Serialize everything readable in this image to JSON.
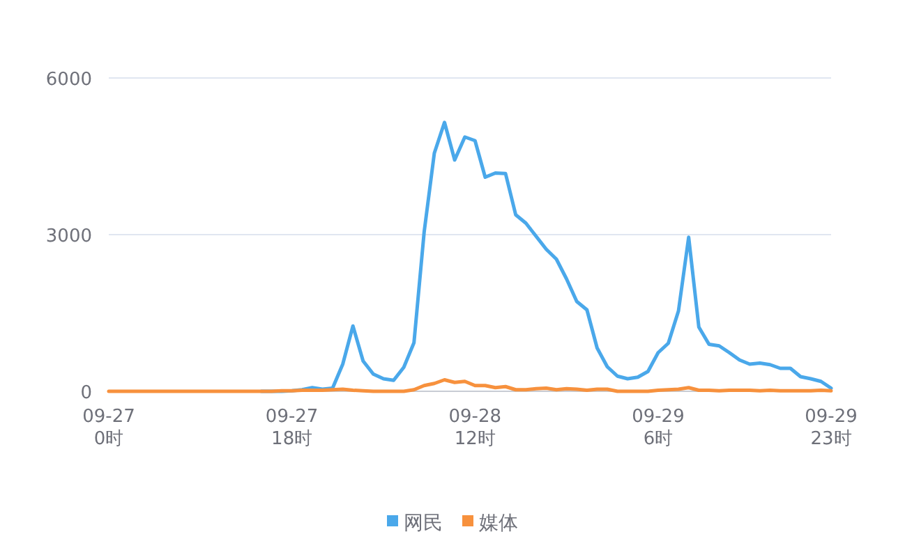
{
  "chart_data": {
    "type": "line",
    "categories": [
      "09-27\n0时",
      null,
      null,
      null,
      null,
      null,
      null,
      null,
      null,
      null,
      null,
      null,
      null,
      null,
      null,
      null,
      null,
      null,
      "09-27\n18时",
      null,
      null,
      null,
      null,
      null,
      null,
      null,
      null,
      null,
      null,
      null,
      null,
      null,
      null,
      null,
      null,
      null,
      "09-28\n12时",
      null,
      null,
      null,
      null,
      null,
      null,
      null,
      null,
      null,
      null,
      null,
      null,
      null,
      null,
      null,
      null,
      null,
      "09-29\n6时",
      null,
      null,
      null,
      null,
      null,
      null,
      null,
      null,
      null,
      null,
      null,
      null,
      null,
      null,
      null,
      null,
      "09-29\n23时"
    ],
    "series": [
      {
        "name": "网民",
        "color": "#4aa8ea",
        "values": [
          null,
          null,
          null,
          null,
          null,
          null,
          null,
          null,
          null,
          null,
          null,
          null,
          null,
          null,
          null,
          0,
          0,
          0,
          10,
          30,
          70,
          40,
          60,
          520,
          1250,
          580,
          330,
          240,
          210,
          460,
          930,
          3050,
          4560,
          5150,
          4430,
          4870,
          4800,
          4100,
          4180,
          4170,
          3380,
          3220,
          2970,
          2720,
          2530,
          2150,
          1720,
          1560,
          830,
          470,
          290,
          240,
          270,
          380,
          740,
          920,
          1540,
          2950,
          1230,
          900,
          870,
          740,
          600,
          520,
          540,
          510,
          440,
          440,
          280,
          240,
          190,
          60
        ]
      },
      {
        "name": "媒体",
        "color": "#f7913d",
        "values": [
          0,
          0,
          0,
          0,
          0,
          0,
          0,
          0,
          0,
          0,
          0,
          0,
          0,
          0,
          0,
          0,
          0,
          10,
          10,
          20,
          20,
          20,
          30,
          40,
          20,
          10,
          0,
          0,
          0,
          0,
          30,
          110,
          150,
          220,
          170,
          190,
          110,
          110,
          70,
          90,
          30,
          30,
          50,
          60,
          30,
          50,
          40,
          20,
          40,
          40,
          0,
          0,
          0,
          0,
          20,
          30,
          40,
          70,
          20,
          20,
          10,
          20,
          20,
          20,
          10,
          20,
          10,
          10,
          10,
          10,
          20,
          10
        ]
      }
    ],
    "ylim": [
      0,
      6000
    ],
    "yticks": [
      0,
      3000,
      6000
    ],
    "grid": "y",
    "legend": "bottom",
    "marker": "none",
    "line_style": "solid"
  }
}
